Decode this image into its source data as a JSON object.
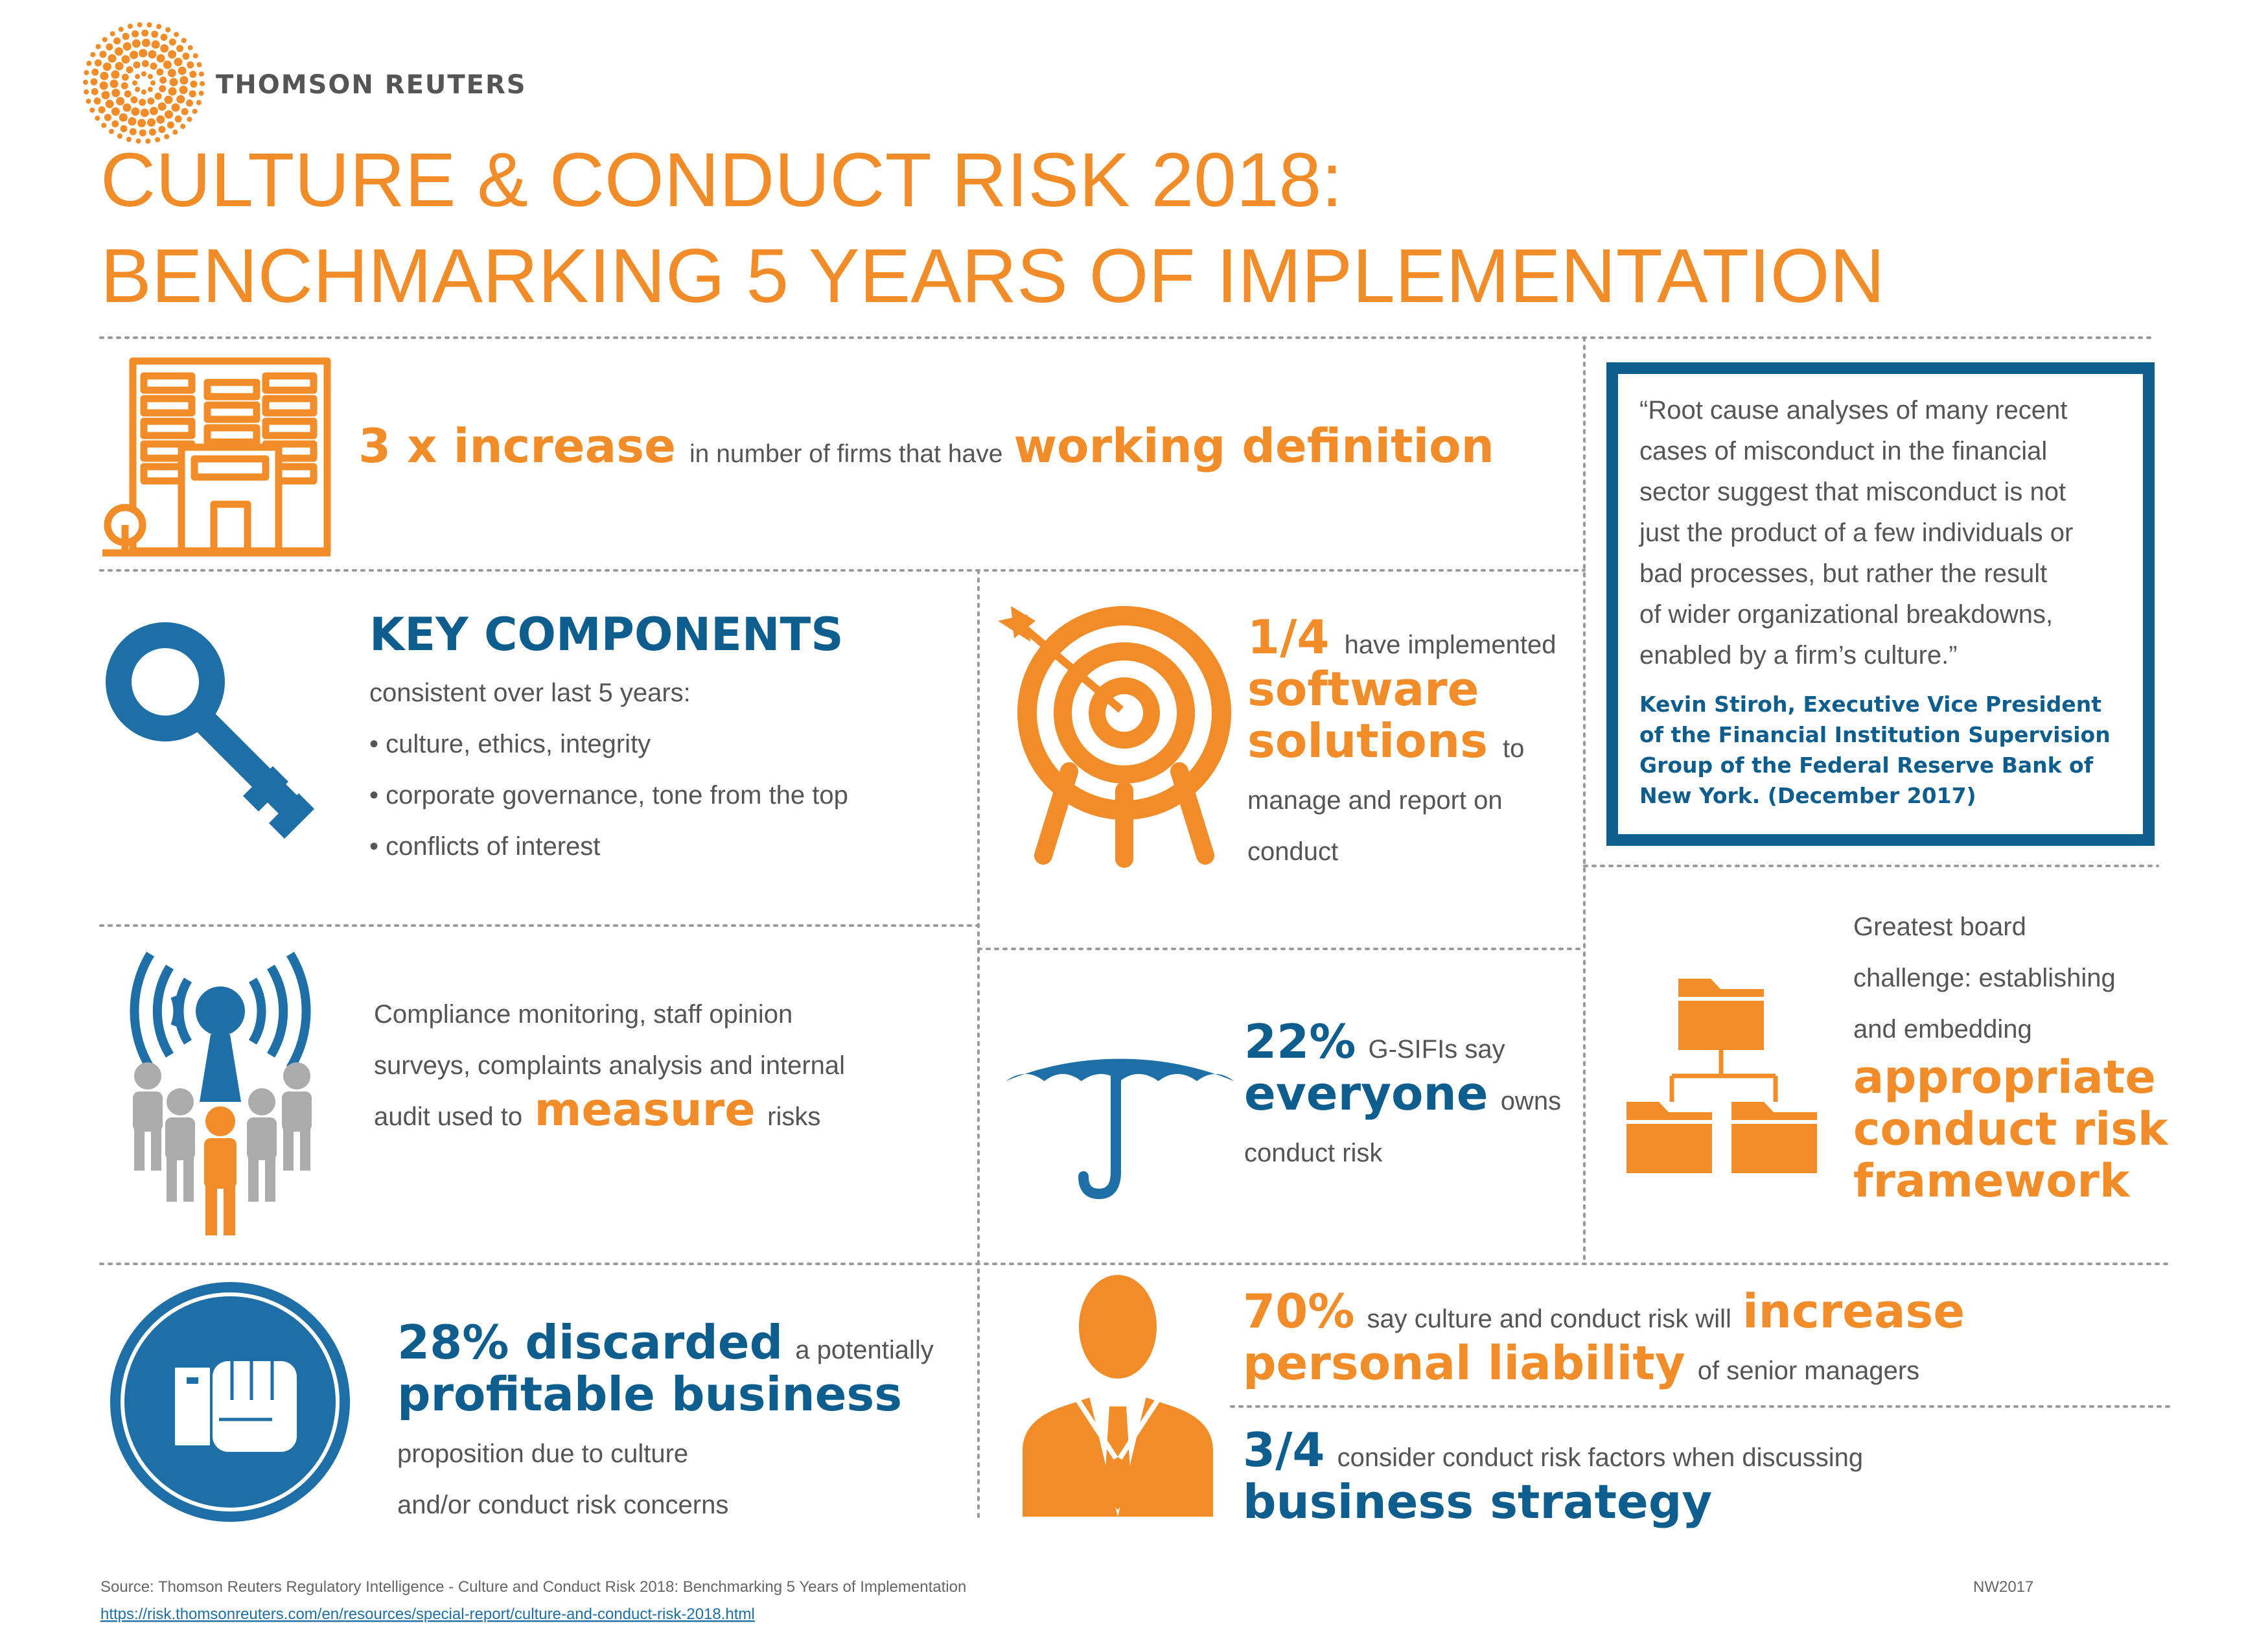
{
  "brand": {
    "name": "THOMSON REUTERS",
    "logo_color": "#F28C28"
  },
  "title": {
    "line1": "CULTURE & CONDUCT RISK 2018:",
    "line2": "BENCHMARKING 5 YEARS OF IMPLEMENTATION"
  },
  "colors": {
    "orange": "#F28C28",
    "blue": "#1E6FA8",
    "navy": "#0E5D8F",
    "gray_text": "#555555",
    "person_gray": "#ABABAB"
  },
  "icons": [
    "building-icon",
    "key-icon",
    "target-icon",
    "broadcast-people-icon",
    "umbrella-icon",
    "folder-hierarchy-icon",
    "fist-icon",
    "businessman-icon",
    "thomson-reuters-logo"
  ],
  "stat_firms": {
    "highlight": "3 x increase",
    "middle": "in number of firms that have",
    "emphasis": "working definition"
  },
  "key_components": {
    "heading": "KEY COMPONENTS",
    "intro": "consistent over last 5 years:",
    "items": [
      "• culture, ethics, integrity",
      "• corporate governance, tone from the top",
      "• conflicts of interest"
    ]
  },
  "software": {
    "fraction": "1/4",
    "after_fraction": "have implemented",
    "emphasis_1": "software",
    "emphasis_2": "solutions",
    "after_emphasis": "to",
    "line_3": "manage and report on",
    "line_4": "conduct"
  },
  "quote": {
    "lines": [
      "“Root cause analyses of many recent",
      "cases of misconduct in the financial",
      "sector suggest that misconduct is not",
      "just the product of a few individuals or",
      "bad processes, but rather the result",
      "of wider organizational breakdowns,",
      "enabled by a firm’s culture.”"
    ],
    "attribution": [
      "Kevin Stiroh, Executive Vice President",
      "of the Financial Institution Supervision",
      "Group of the Federal Reserve Bank of",
      "New York. (December 2017)"
    ]
  },
  "measure": {
    "line_1": "Compliance monitoring, staff opinion",
    "line_2": "surveys, complaints analysis and internal",
    "line_3_start": "audit used to",
    "emphasis": "measure",
    "line_3_end": "risks"
  },
  "gsifi": {
    "percent": "22%",
    "after_percent": "G-SIFIs say",
    "emphasis": "everyone",
    "after_emphasis": "owns",
    "line_3": "conduct risk"
  },
  "board": {
    "line_1": "Greatest board",
    "line_2": "challenge:  establishing",
    "line_3": "and embedding",
    "emphasis": [
      "appropriate",
      "conduct risk",
      "framework"
    ]
  },
  "discarded": {
    "highlight": "28% discarded",
    "after_highlight": "a potentially",
    "emphasis": "profitable business",
    "line_3": "proposition due to culture",
    "line_4": "and/or conduct risk concerns"
  },
  "liability": {
    "percent": "70%",
    "middle": "say culture and conduct risk will",
    "emphasis_1": "increase",
    "emphasis_2": "personal liability",
    "after_emphasis": "of senior managers"
  },
  "strategy": {
    "fraction": "3/4",
    "middle": "consider conduct risk factors when discussing",
    "emphasis": "business strategy"
  },
  "footer": {
    "source": "Source: Thomson Reuters Regulatory Intelligence - Culture and Conduct Risk 2018: Benchmarking 5 Years of Implementation",
    "url": "https://risk.thomsonreuters.com/en/resources/special-report/culture-and-conduct-risk-2018.html",
    "code": "NW2017"
  }
}
